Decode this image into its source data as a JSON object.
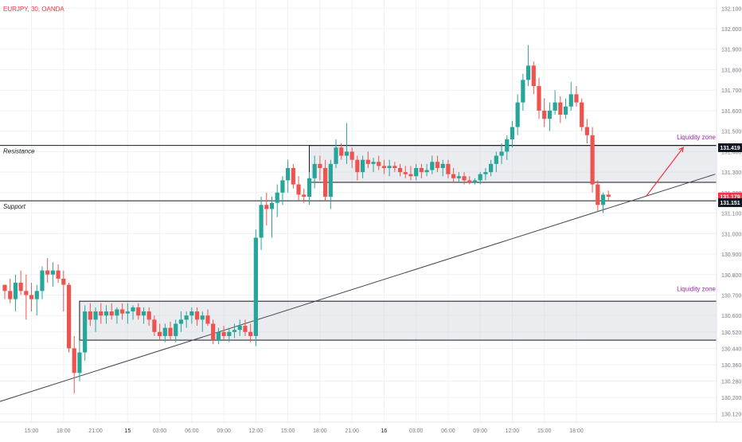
{
  "header": {
    "symbol_label": "EURJPY, 30, OANDA"
  },
  "chart_data": {
    "type": "candlestick",
    "symbol": "EURJPY",
    "timeframe": "30",
    "source": "OANDA",
    "colors": {
      "up": "#26a69a",
      "down": "#ef5350",
      "grid": "#eef1f5",
      "zone_fill": "#d1d4dc",
      "annotation": "#9c27b0",
      "arrow": "#f23645",
      "trendline": "#434651"
    },
    "ylim": [
      130.08,
      132.14
    ],
    "y_ticks": [
      "132.100",
      "132.000",
      "131.900",
      "131.800",
      "131.700",
      "131.600",
      "131.500",
      "131.400",
      "131.300",
      "131.200",
      "131.100",
      "131.000",
      "130.900",
      "130.800",
      "130.700",
      "130.600",
      "130.520",
      "130.440",
      "130.360",
      "130.280",
      "130.200",
      "130.120"
    ],
    "x_ticks": [
      "15:00",
      "18:00",
      "21:00",
      "15",
      "03:00",
      "06:00",
      "09:00",
      "12:00",
      "15:00",
      "18:00",
      "21:00",
      "16",
      "03:00",
      "06:00",
      "09:00",
      "12:00",
      "15:00",
      "18:00"
    ],
    "price_labels": [
      {
        "label": "131.419",
        "value": 131.419,
        "style": "dark"
      },
      {
        "label": "131.179",
        "value": 131.179,
        "style": "red"
      },
      {
        "label": "131.151",
        "value": 131.151,
        "style": "dark"
      }
    ],
    "zones": [
      {
        "name": "resistance-support-zone",
        "ylow": 131.25,
        "yhigh": 131.43,
        "x_start_index": 57
      },
      {
        "name": "lower-liquidity-zone",
        "ylow": 130.48,
        "yhigh": 130.67,
        "x_start_index": 14
      }
    ],
    "horizontal_lines": [
      {
        "label": "Resistance",
        "value": 131.43
      },
      {
        "label": "Support",
        "value": 131.16
      }
    ],
    "annotations": [
      {
        "label": "Liquidity zone",
        "value": 131.46
      },
      {
        "label": "Liquidity zone",
        "value": 130.72
      }
    ],
    "trendline": {
      "from": {
        "index": -1,
        "value": 130.18
      },
      "to": {
        "index": 133,
        "value": 131.29
      }
    },
    "arrow": {
      "from": {
        "index": 120,
        "value": 131.18
      },
      "to": {
        "index": 127,
        "value": 131.42
      }
    },
    "candles": [
      [
        130.75,
        130.75,
        130.68,
        130.72
      ],
      [
        130.72,
        130.78,
        130.66,
        130.68
      ],
      [
        130.68,
        130.8,
        130.62,
        130.76
      ],
      [
        130.76,
        130.82,
        130.7,
        130.72
      ],
      [
        130.72,
        130.8,
        130.58,
        130.7
      ],
      [
        130.7,
        130.76,
        130.62,
        130.68
      ],
      [
        130.68,
        130.75,
        130.6,
        130.72
      ],
      [
        130.72,
        130.84,
        130.68,
        130.82
      ],
      [
        130.82,
        130.88,
        130.76,
        130.8
      ],
      [
        130.8,
        130.86,
        130.74,
        130.82
      ],
      [
        130.82,
        130.85,
        130.76,
        130.78
      ],
      [
        130.78,
        130.82,
        130.62,
        130.75
      ],
      [
        130.75,
        130.76,
        130.42,
        130.44
      ],
      [
        130.44,
        130.5,
        130.22,
        130.32
      ],
      [
        130.32,
        130.48,
        130.28,
        130.42
      ],
      [
        130.42,
        130.65,
        130.38,
        130.62
      ],
      [
        130.62,
        130.66,
        130.55,
        130.58
      ],
      [
        130.58,
        130.64,
        130.52,
        130.62
      ],
      [
        130.62,
        130.66,
        130.56,
        130.6
      ],
      [
        130.6,
        130.65,
        130.56,
        130.62
      ],
      [
        130.62,
        130.66,
        130.58,
        130.6
      ],
      [
        130.6,
        130.64,
        130.56,
        130.63
      ],
      [
        130.63,
        130.66,
        130.58,
        130.61
      ],
      [
        130.61,
        130.66,
        130.56,
        130.62
      ],
      [
        130.62,
        130.65,
        130.58,
        130.64
      ],
      [
        130.64,
        130.66,
        130.58,
        130.6
      ],
      [
        130.6,
        130.64,
        130.56,
        130.62
      ],
      [
        130.62,
        130.64,
        130.55,
        130.58
      ],
      [
        130.58,
        130.6,
        130.5,
        130.52
      ],
      [
        130.52,
        130.56,
        130.48,
        130.5
      ],
      [
        130.5,
        130.56,
        130.47,
        130.54
      ],
      [
        130.54,
        130.57,
        130.48,
        130.5
      ],
      [
        130.5,
        130.58,
        130.47,
        130.56
      ],
      [
        130.56,
        130.62,
        130.52,
        130.58
      ],
      [
        130.58,
        130.62,
        130.54,
        130.6
      ],
      [
        130.6,
        130.64,
        130.56,
        130.62
      ],
      [
        130.62,
        130.64,
        130.55,
        130.58
      ],
      [
        130.58,
        130.62,
        130.52,
        130.6
      ],
      [
        130.6,
        130.63,
        130.55,
        130.56
      ],
      [
        130.56,
        130.58,
        130.46,
        130.48
      ],
      [
        130.48,
        130.54,
        130.46,
        130.52
      ],
      [
        130.52,
        130.55,
        130.48,
        130.5
      ],
      [
        130.5,
        130.54,
        130.47,
        130.52
      ],
      [
        130.52,
        130.56,
        130.49,
        130.53
      ],
      [
        130.53,
        130.58,
        130.5,
        130.55
      ],
      [
        130.55,
        130.58,
        130.5,
        130.52
      ],
      [
        130.52,
        130.56,
        130.47,
        130.5
      ],
      [
        130.5,
        131.02,
        130.45,
        130.98
      ],
      [
        130.98,
        131.18,
        130.92,
        131.14
      ],
      [
        131.14,
        131.2,
        131.04,
        131.12
      ],
      [
        131.12,
        131.18,
        130.98,
        131.15
      ],
      [
        131.15,
        131.24,
        131.08,
        131.2
      ],
      [
        131.2,
        131.28,
        131.14,
        131.26
      ],
      [
        131.26,
        131.36,
        131.2,
        131.32
      ],
      [
        131.32,
        131.34,
        131.22,
        131.24
      ],
      [
        131.24,
        131.28,
        131.16,
        131.19
      ],
      [
        131.19,
        131.22,
        131.15,
        131.18
      ],
      [
        131.18,
        131.3,
        131.14,
        131.27
      ],
      [
        131.27,
        131.38,
        131.22,
        131.34
      ],
      [
        131.34,
        131.38,
        131.26,
        131.32
      ],
      [
        131.32,
        131.36,
        131.16,
        131.18
      ],
      [
        131.18,
        131.36,
        131.12,
        131.34
      ],
      [
        131.34,
        131.46,
        131.32,
        131.42
      ],
      [
        131.42,
        131.44,
        131.36,
        131.38
      ],
      [
        131.38,
        131.54,
        131.34,
        131.4
      ],
      [
        131.4,
        131.42,
        131.32,
        131.36
      ],
      [
        131.36,
        131.38,
        131.26,
        131.3
      ],
      [
        131.3,
        131.38,
        131.27,
        131.36
      ],
      [
        131.36,
        131.4,
        131.32,
        131.34
      ],
      [
        131.34,
        131.37,
        131.3,
        131.35
      ],
      [
        131.35,
        131.38,
        131.31,
        131.33
      ],
      [
        131.33,
        131.36,
        131.29,
        131.32
      ],
      [
        131.32,
        131.36,
        131.28,
        131.33
      ],
      [
        131.33,
        131.35,
        131.3,
        131.32
      ],
      [
        131.32,
        131.34,
        131.28,
        131.3
      ],
      [
        131.3,
        131.33,
        131.27,
        131.29
      ],
      [
        131.29,
        131.33,
        131.26,
        131.28
      ],
      [
        131.28,
        131.34,
        131.26,
        131.32
      ],
      [
        131.32,
        131.34,
        131.27,
        131.3
      ],
      [
        131.3,
        131.34,
        131.28,
        131.31
      ],
      [
        131.31,
        131.38,
        131.29,
        131.35
      ],
      [
        131.35,
        131.38,
        131.3,
        131.32
      ],
      [
        131.32,
        131.36,
        131.28,
        131.34
      ],
      [
        131.34,
        131.36,
        131.27,
        131.29
      ],
      [
        131.29,
        131.32,
        131.25,
        131.27
      ],
      [
        131.27,
        131.3,
        131.25,
        131.28
      ],
      [
        131.28,
        131.3,
        131.24,
        131.26
      ],
      [
        131.26,
        131.28,
        131.24,
        131.25
      ],
      [
        131.25,
        131.27,
        131.24,
        131.26
      ],
      [
        131.26,
        131.3,
        131.24,
        131.29
      ],
      [
        131.29,
        131.32,
        131.26,
        131.3
      ],
      [
        131.3,
        131.36,
        131.28,
        131.34
      ],
      [
        131.34,
        131.4,
        131.3,
        131.38
      ],
      [
        131.38,
        131.44,
        131.34,
        131.4
      ],
      [
        131.4,
        131.48,
        131.36,
        131.46
      ],
      [
        131.46,
        131.55,
        131.42,
        131.52
      ],
      [
        131.52,
        131.68,
        131.48,
        131.64
      ],
      [
        131.64,
        131.78,
        131.6,
        131.75
      ],
      [
        131.75,
        131.92,
        131.72,
        131.82
      ],
      [
        131.82,
        131.84,
        131.68,
        131.72
      ],
      [
        131.72,
        131.76,
        131.56,
        131.6
      ],
      [
        131.6,
        131.66,
        131.52,
        131.56
      ],
      [
        131.56,
        131.64,
        131.5,
        131.6
      ],
      [
        131.6,
        131.7,
        131.58,
        131.64
      ],
      [
        131.64,
        131.67,
        131.54,
        131.58
      ],
      [
        131.58,
        131.66,
        131.56,
        131.62
      ],
      [
        131.62,
        131.74,
        131.6,
        131.68
      ],
      [
        131.68,
        131.72,
        131.62,
        131.64
      ],
      [
        131.64,
        131.66,
        131.5,
        131.52
      ],
      [
        131.52,
        131.56,
        131.44,
        131.48
      ],
      [
        131.48,
        131.52,
        131.2,
        131.24
      ],
      [
        131.24,
        131.26,
        131.11,
        131.14
      ],
      [
        131.14,
        131.2,
        131.1,
        131.19
      ],
      [
        131.19,
        131.21,
        131.16,
        131.18
      ]
    ]
  }
}
